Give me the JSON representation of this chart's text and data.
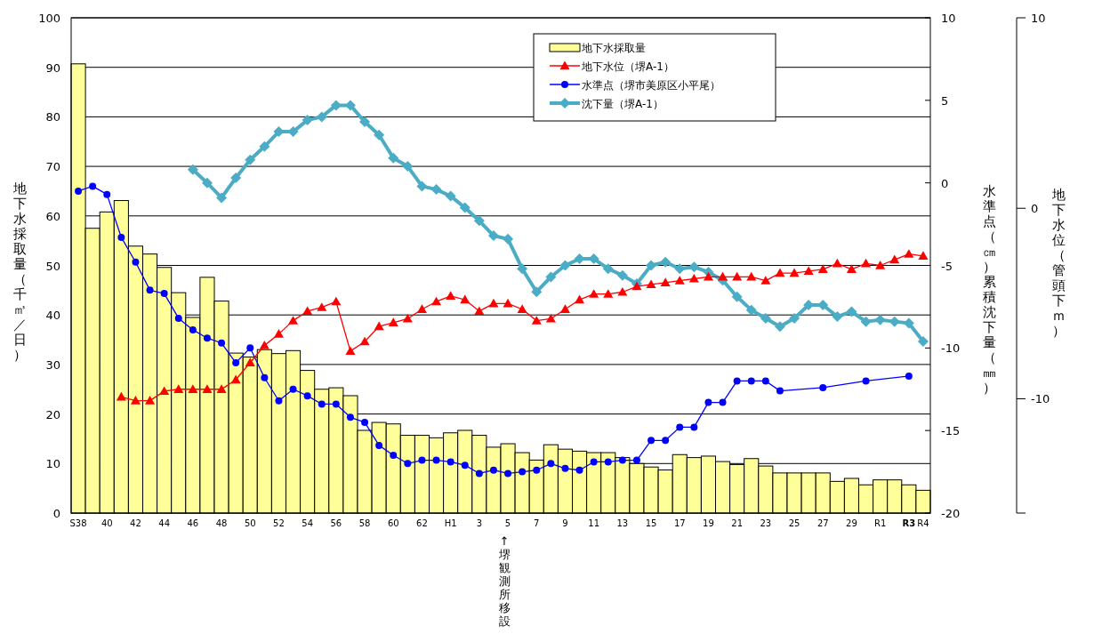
{
  "chart_data": {
    "type": "bar",
    "categories": [
      "S38",
      null,
      "40",
      null,
      "42",
      null,
      "44",
      null,
      "46",
      null,
      "48",
      null,
      "50",
      null,
      "52",
      null,
      "54",
      null,
      "56",
      null,
      "58",
      null,
      "60",
      null,
      "62",
      null,
      "H1",
      null,
      "3",
      null,
      "5",
      null,
      "7",
      null,
      "9",
      null,
      "11",
      null,
      "13",
      null,
      "15",
      null,
      "17",
      null,
      "19",
      null,
      "21",
      null,
      "23",
      null,
      "25",
      null,
      "27",
      null,
      "29",
      null,
      "R1",
      null,
      "**R3**",
      "R4"
    ],
    "ylabel": "地下水採取量（千㎥／日）",
    "y2label": "水準点（㎝）累積沈下量（㎜）",
    "y3label": "地下水位（管頭下ｍ）",
    "ylim": [
      0,
      100
    ],
    "yticks": [
      0,
      10,
      20,
      30,
      40,
      50,
      60,
      70,
      80,
      90,
      100
    ],
    "y2lim": [
      -20,
      10
    ],
    "y2ticks": [
      -20,
      -15,
      -10,
      -5,
      0,
      5,
      10
    ],
    "y3lim": [
      -16,
      10
    ],
    "y3ticks": [
      10,
      0,
      -10,
      {
        "value": -16,
        "label": null
      }
    ],
    "grid": "y",
    "legend": "top right",
    "annotations": [
      "↑堺観測所移設"
    ],
    "series": [
      {
        "name": "地下水採取量",
        "color": "#ffff99",
        "values": [
          90.7,
          57.5,
          60.8,
          63.1,
          53.9,
          52.3,
          49.6,
          44.5,
          39.5,
          47.6,
          42.8,
          32.3,
          31.5,
          33.0,
          32.2,
          32.8,
          28.8,
          25.0,
          25.3,
          23.7,
          16.7,
          18.3,
          18.0,
          15.7,
          15.7,
          15.2,
          16.2,
          16.7,
          15.7,
          13.3,
          14.0,
          12.2,
          10.7,
          13.8,
          12.9,
          12.5,
          12.2,
          12.2,
          11.2,
          10.0,
          9.3,
          8.7,
          11.8,
          11.2,
          11.5,
          10.4,
          9.8,
          11.0,
          9.5,
          8.1,
          8.1,
          8.1,
          8.1,
          6.4,
          7.0,
          5.7,
          6.7,
          6.7,
          5.7,
          4.6
        ]
      },
      {
        "name": "地下水位（堺A-1）",
        "type": "line",
        "axis": "y3",
        "marker": "triangle",
        "color": "#ff0000",
        "values": [
          null,
          null,
          null,
          -9.9,
          -10.1,
          -10.1,
          -9.6,
          -9.5,
          -9.5,
          -9.5,
          -9.5,
          -9.0,
          -8.1,
          -7.2,
          -6.6,
          -5.9,
          -5.4,
          -5.2,
          -4.9,
          -7.5,
          -7.0,
          -6.2,
          -6.0,
          -5.8,
          -5.3,
          -4.9,
          -4.6,
          -4.8,
          -5.4,
          -5.0,
          -5.0,
          -5.3,
          -5.9,
          -5.8,
          -5.3,
          -4.8,
          -4.5,
          -4.5,
          -4.4,
          -4.1,
          -4.0,
          -3.9,
          -3.8,
          -3.7,
          -3.6,
          -3.6,
          -3.6,
          -3.6,
          -3.8,
          -3.4,
          -3.4,
          -3.3,
          -3.2,
          -2.9,
          -3.2,
          -2.9,
          -3.0,
          -2.7,
          -2.4,
          -2.5
        ]
      },
      {
        "name": "水準点（堺市美原区小平尾）",
        "type": "line",
        "axis": "y2",
        "marker": "circle",
        "color": "#0000ff",
        "values": [
          -0.5,
          -0.2,
          -0.7,
          -3.3,
          -4.8,
          -6.5,
          -6.7,
          -8.2,
          -8.9,
          -9.4,
          -9.7,
          -10.9,
          -10.0,
          -11.8,
          -13.2,
          -12.5,
          -12.9,
          -13.4,
          -13.4,
          -14.2,
          -14.5,
          -15.9,
          -16.5,
          -17.0,
          -16.8,
          -16.8,
          -16.9,
          -17.1,
          -17.6,
          -17.4,
          -17.6,
          -17.5,
          -17.4,
          -17.0,
          -17.3,
          -17.4,
          -16.9,
          -16.9,
          -16.8,
          -16.8,
          -15.6,
          -15.6,
          -14.8,
          -14.8,
          -13.3,
          -13.3,
          -12.0,
          -12.0,
          -12.0,
          -12.6,
          null,
          null,
          -12.4,
          null,
          null,
          -12.0,
          null,
          null,
          -11.7,
          null
        ]
      },
      {
        "name": "沈下量（堺A-1）",
        "type": "line",
        "axis": "y2",
        "marker": "diamond",
        "color": "#4bacc6",
        "values": [
          null,
          null,
          null,
          null,
          null,
          null,
          null,
          null,
          0.8,
          0.0,
          -0.9,
          0.3,
          1.4,
          2.2,
          3.1,
          3.1,
          3.8,
          4.0,
          4.7,
          4.7,
          3.7,
          2.9,
          1.5,
          1.0,
          -0.2,
          -0.4,
          -0.8,
          -1.5,
          -2.3,
          -3.2,
          -3.4,
          -5.2,
          -6.6,
          -5.7,
          -5.0,
          -4.6,
          -4.6,
          -5.2,
          -5.6,
          -6.1,
          -5.0,
          -4.8,
          -5.2,
          -5.1,
          -5.4,
          -5.9,
          -6.9,
          -7.7,
          -8.2,
          -8.7,
          -8.2,
          -7.4,
          -7.4,
          -8.1,
          -7.8,
          -8.4,
          -8.3,
          -8.4,
          -8.5,
          -9.6
        ]
      }
    ]
  }
}
